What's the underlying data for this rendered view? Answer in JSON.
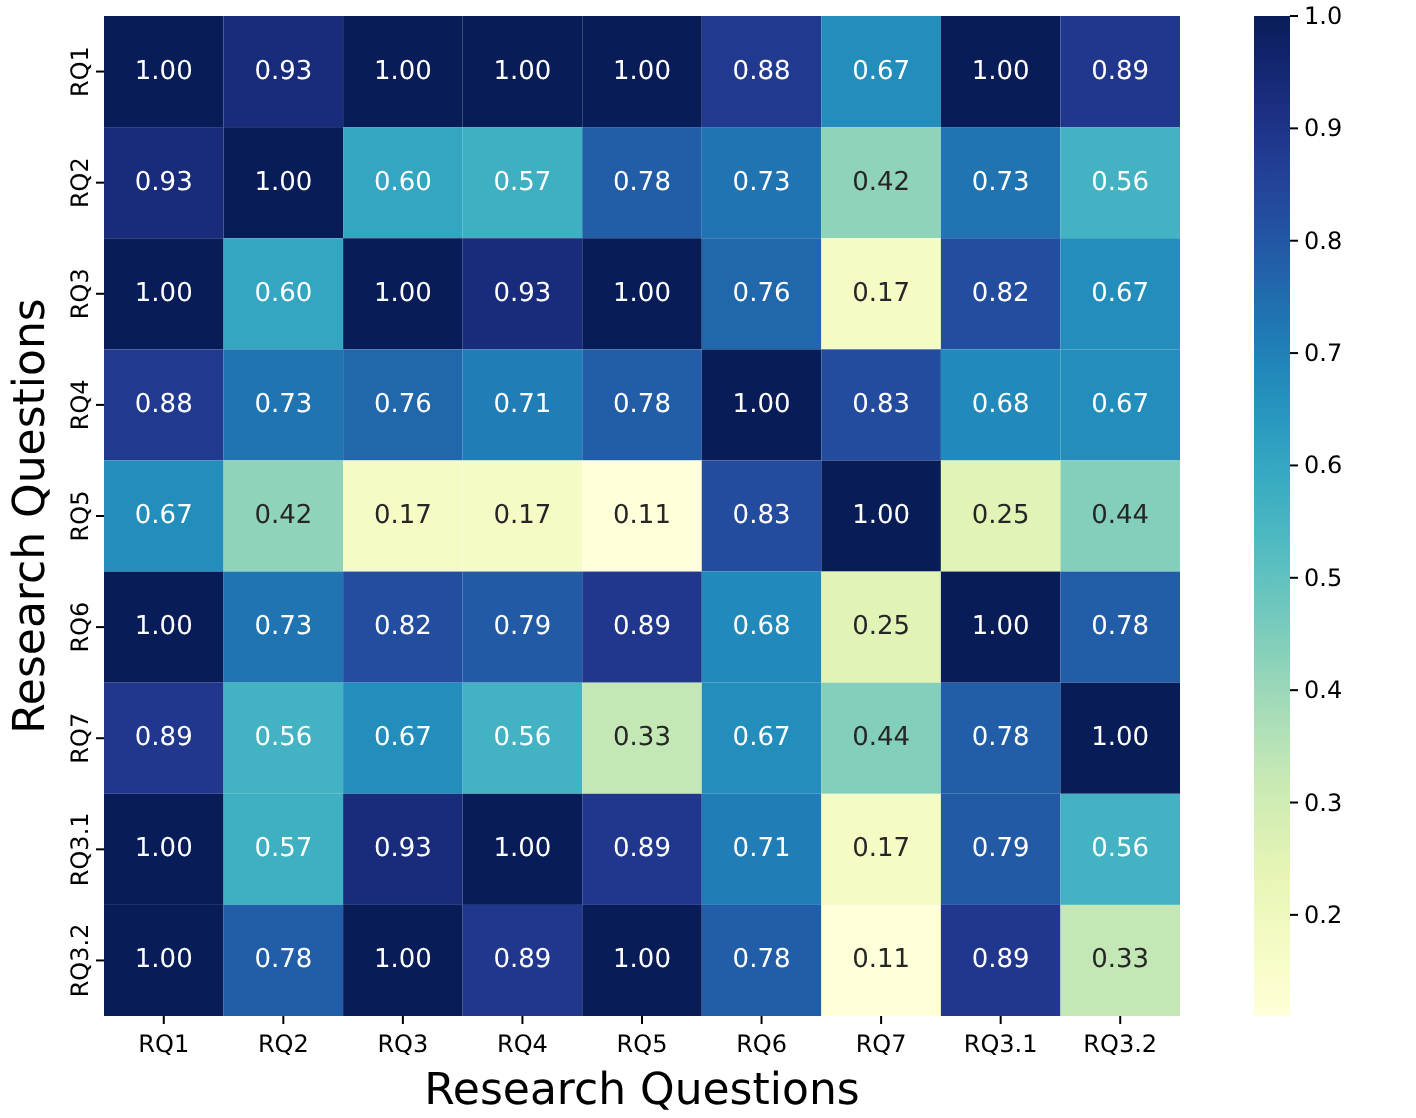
{
  "chart_data": {
    "type": "heatmap",
    "xlabel": "Research Questions",
    "ylabel": "Research Questions",
    "categories": [
      "RQ1",
      "RQ2",
      "RQ3",
      "RQ4",
      "RQ5",
      "RQ6",
      "RQ7",
      "RQ3.1",
      "RQ3.2"
    ],
    "y_categories": [
      "RQ1",
      "RQ2",
      "RQ3",
      "RQ4",
      "RQ5",
      "RQ6",
      "RQ7",
      "RQ3.1",
      "RQ3.2"
    ],
    "cells": [
      [
        1.0,
        0.93,
        1.0,
        1.0,
        1.0,
        0.88,
        0.67,
        1.0,
        0.89
      ],
      [
        0.93,
        1.0,
        0.6,
        0.57,
        0.78,
        0.73,
        0.42,
        0.73,
        0.56
      ],
      [
        1.0,
        0.6,
        1.0,
        0.93,
        1.0,
        0.76,
        0.17,
        0.82,
        0.67
      ],
      [
        0.88,
        0.73,
        0.76,
        0.71,
        0.78,
        1.0,
        0.83,
        0.68,
        0.67
      ],
      [
        0.67,
        0.42,
        0.17,
        0.17,
        0.11,
        0.83,
        1.0,
        0.25,
        0.44
      ],
      [
        1.0,
        0.73,
        0.82,
        0.79,
        0.89,
        0.68,
        0.25,
        1.0,
        0.78
      ],
      [
        0.89,
        0.56,
        0.67,
        0.56,
        0.33,
        0.67,
        0.44,
        0.78,
        1.0
      ],
      [
        1.0,
        0.57,
        0.93,
        1.0,
        0.89,
        0.71,
        0.17,
        0.79,
        0.56
      ],
      [
        1.0,
        0.78,
        1.0,
        0.89,
        1.0,
        0.78,
        0.11,
        0.89,
        0.33
      ]
    ],
    "cell_labels": [
      [
        "1.00",
        "0.93",
        "1.00",
        "1.00",
        "1.00",
        "0.88",
        "0.67",
        "1.00",
        "0.89"
      ],
      [
        "0.93",
        "1.00",
        "0.60",
        "0.57",
        "0.78",
        "0.73",
        "0.42",
        "0.73",
        "0.56"
      ],
      [
        "1.00",
        "0.60",
        "1.00",
        "0.93",
        "1.00",
        "0.76",
        "0.17",
        "0.82",
        "0.67"
      ],
      [
        "0.88",
        "0.73",
        "0.76",
        "0.71",
        "0.78",
        "1.00",
        "0.83",
        "0.68",
        "0.67"
      ],
      [
        "0.67",
        "0.42",
        "0.17",
        "0.17",
        "0.11",
        "0.83",
        "1.00",
        "0.25",
        "0.44"
      ],
      [
        "1.00",
        "0.73",
        "0.82",
        "0.79",
        "0.89",
        "0.68",
        "0.25",
        "1.00",
        "0.78"
      ],
      [
        "0.89",
        "0.56",
        "0.67",
        "0.56",
        "0.33",
        "0.67",
        "0.44",
        "0.78",
        "1.00"
      ],
      [
        "1.00",
        "0.57",
        "0.93",
        "1.00",
        "0.89",
        "0.71",
        "0.17",
        "0.79",
        "0.56"
      ],
      [
        "1.00",
        "0.78",
        "1.00",
        "0.89",
        "1.00",
        "0.78",
        "0.11",
        "0.89",
        "0.33"
      ]
    ],
    "clim": [
      0.11,
      1.0
    ],
    "cticks": [
      {
        "value": 0.2,
        "label": "0.2"
      },
      {
        "value": 0.3,
        "label": "0.3"
      },
      {
        "value": 0.4,
        "label": "0.4"
      },
      {
        "value": 0.5,
        "label": "0.5"
      },
      {
        "value": 0.6,
        "label": "0.6"
      },
      {
        "value": 0.7,
        "label": "0.7"
      },
      {
        "value": 0.8,
        "label": "0.8"
      },
      {
        "value": 0.9,
        "label": "0.9"
      },
      {
        "value": 1.0,
        "label": "1.0"
      }
    ]
  }
}
